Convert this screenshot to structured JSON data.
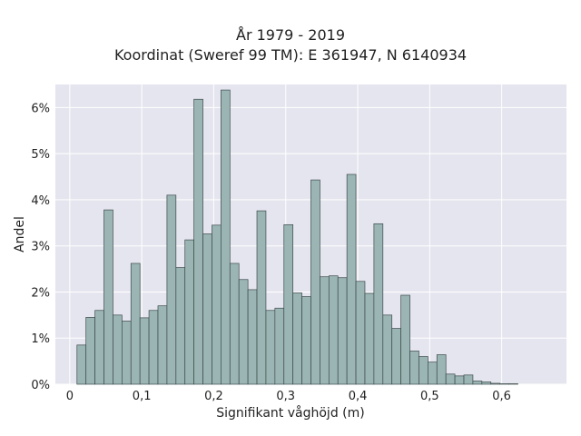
{
  "chart_data": {
    "type": "bar",
    "title_lines": [
      "År 1979 - 2019",
      "Koordinat (Sweref 99 TM): E 361947, N 6140934"
    ],
    "xlabel": "Signifikant våghöjd (m)",
    "ylabel": "Andel",
    "xlim": [
      -0.02,
      0.69
    ],
    "ylim": [
      0,
      6.5
    ],
    "x_ticks": [
      0,
      0.1,
      0.2,
      0.3,
      0.4,
      0.5,
      0.6
    ],
    "x_tick_labels": [
      "0",
      "0,1",
      "0,2",
      "0,3",
      "0,4",
      "0,5",
      "0,6"
    ],
    "y_ticks": [
      0,
      1,
      2,
      3,
      4,
      5,
      6
    ],
    "y_tick_labels": [
      "0%",
      "1%",
      "2%",
      "3%",
      "4%",
      "5%",
      "6%"
    ],
    "bin_start": 0.01,
    "bin_width": 0.0125,
    "values": [
      0.85,
      1.45,
      1.6,
      3.78,
      1.5,
      1.37,
      2.62,
      1.44,
      1.6,
      1.7,
      4.1,
      2.53,
      3.13,
      6.18,
      3.26,
      3.45,
      6.38,
      2.62,
      2.27,
      2.05,
      3.76,
      1.6,
      1.65,
      3.46,
      1.98,
      1.9,
      4.43,
      2.33,
      2.35,
      2.31,
      4.55,
      2.23,
      1.97,
      3.48,
      1.5,
      1.21,
      1.93,
      0.72,
      0.6,
      0.48,
      0.64,
      0.22,
      0.18,
      0.2,
      0.07,
      0.05,
      0.02,
      0.01,
      0.01
    ],
    "grid": true,
    "colors": {
      "plot_bg": "#e5e5ef",
      "grid": "#ffffff",
      "bar_fill": "#9bb5b5",
      "bar_edge": "#3d4a4a",
      "text": "#222222"
    }
  }
}
